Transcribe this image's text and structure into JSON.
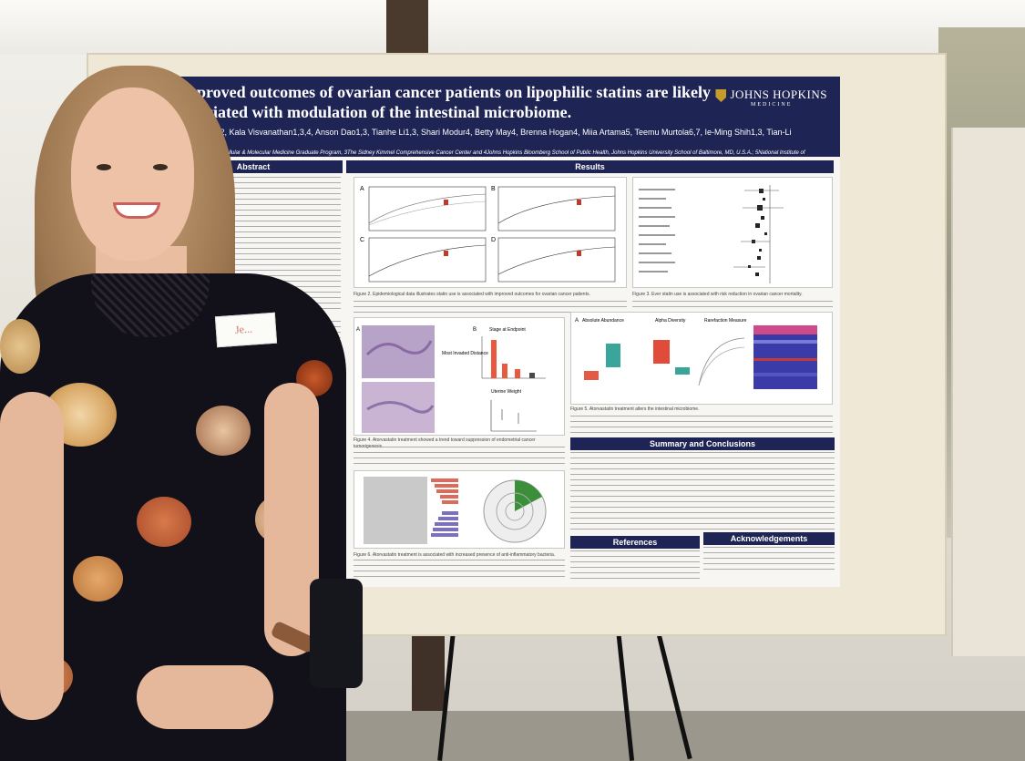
{
  "poster": {
    "title": "Improved outcomes of ovarian cancer patients on lipophilic statins are likely associated with modulation of the intestinal microbiome.",
    "authors": "M. Liberto1,2, Kala Visvanathan1,3,4, Anson Dao1,3, Tianhe Li1,3, Shari Modur4, Betty May4, Brenna Hogan4, Miia Artama5, Teemu Murtola6,7, Ie-Ming Shih1,3, Tian-Li Wang1,3",
    "affiliations": "ent of Pathology, 2Cellular & Molecular Medicine Graduate Program, 3The Sidney Kimmel Comprehensive Cancer Center and 4Johns Hopkins Bloomberg School of Public Health, Johns Hopkins University School of Baltimore, MD, U.S.A.; 5National Institute of Health and Welfare, Tampere, Finland; 6Tampere University, Faculty of Medicine and Health Technology, Tampere, Finland and 7TAYS Cancer Center, Department of Urology, inland",
    "logo": "JOHNS HOPKINS",
    "logo_sub": "MEDICINE",
    "sections": {
      "abstract": "Abstract",
      "results": "Results",
      "summary": "Summary and Conclusions",
      "references": "References",
      "acknowledgements": "Acknowledgements"
    },
    "figure_captions": {
      "fig2": "Figure 2. Epidemiological data illustrates statin use is associated with improved outcomes for ovarian cancer patients.",
      "fig3": "Figure 3. Ever statin use is associated with risk reduction in ovarian cancer mortality.",
      "fig4": "Figure 4. Atorvastatin treatment showed a trend toward suppression of endometrial cancer tumorigenesis.",
      "fig5": "Figure 5. Atorvastatin treatment alters the intestinal microbiome.",
      "fig6": "Figure 6. Atorvastatin treatment is associated with increased presence of anti-inflammatory bacteria."
    },
    "panel_labels": [
      "A",
      "B",
      "C",
      "D"
    ],
    "fig4_labels": {
      "stage": "Stage at Endpoint",
      "distance": "Most Invaded Distance",
      "uterine": "Uterine Weight"
    },
    "fig5_labels": {
      "abundance": "Absolute Abundance",
      "alpha": "Alpha Diversity",
      "rarefaction": "Rarefaction Measure"
    }
  },
  "badge": {
    "text": "Je..."
  }
}
